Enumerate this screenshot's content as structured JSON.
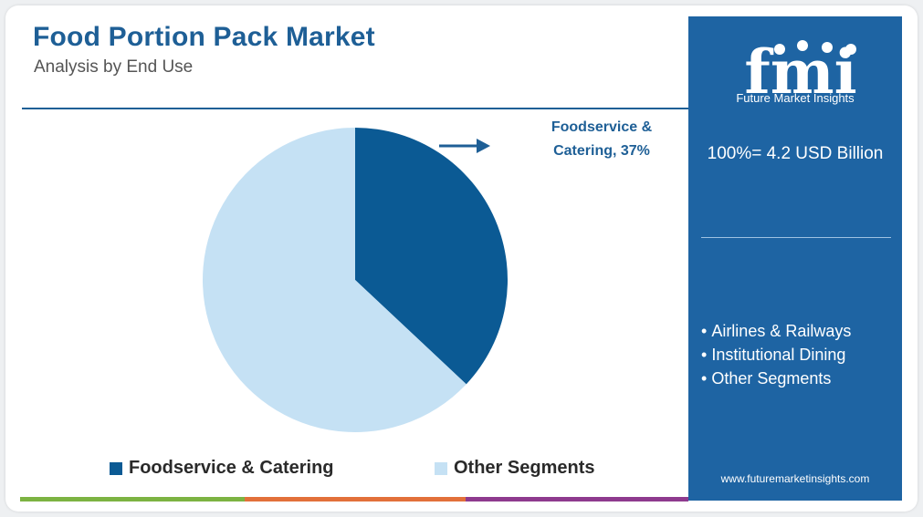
{
  "header": {
    "title": "Food Portion Pack Market",
    "subtitle": "Analysis by End Use"
  },
  "chart_data": {
    "type": "pie",
    "categories": [
      "Foodservice & Catering",
      "Other Segments"
    ],
    "values": [
      37,
      63
    ],
    "colors": [
      "#0b5a94",
      "#c5e1f4"
    ],
    "callout": "Foodservice & Catering, 37%",
    "legend_position": "bottom"
  },
  "legend": {
    "items": [
      {
        "label": "Foodservice & Catering",
        "color": "#0b5a94"
      },
      {
        "label": "Other Segments",
        "color": "#c5e1f4"
      }
    ]
  },
  "side_panel": {
    "logo_letters": "fmi",
    "logo_tagline": "Future Market Insights",
    "total": "100%= 4.2 USD Billion",
    "other_segments": [
      "Airlines & Railways",
      "Institutional Dining",
      "Other Segments"
    ],
    "bullet": "•",
    "website": "www.futuremarketinsights.com"
  },
  "colors": {
    "brand_blue": "#1e64a3",
    "title_blue": "#1e5f96",
    "bottom_bar": [
      "#7cb342",
      "#e2703a",
      "#8e3a8e"
    ]
  }
}
